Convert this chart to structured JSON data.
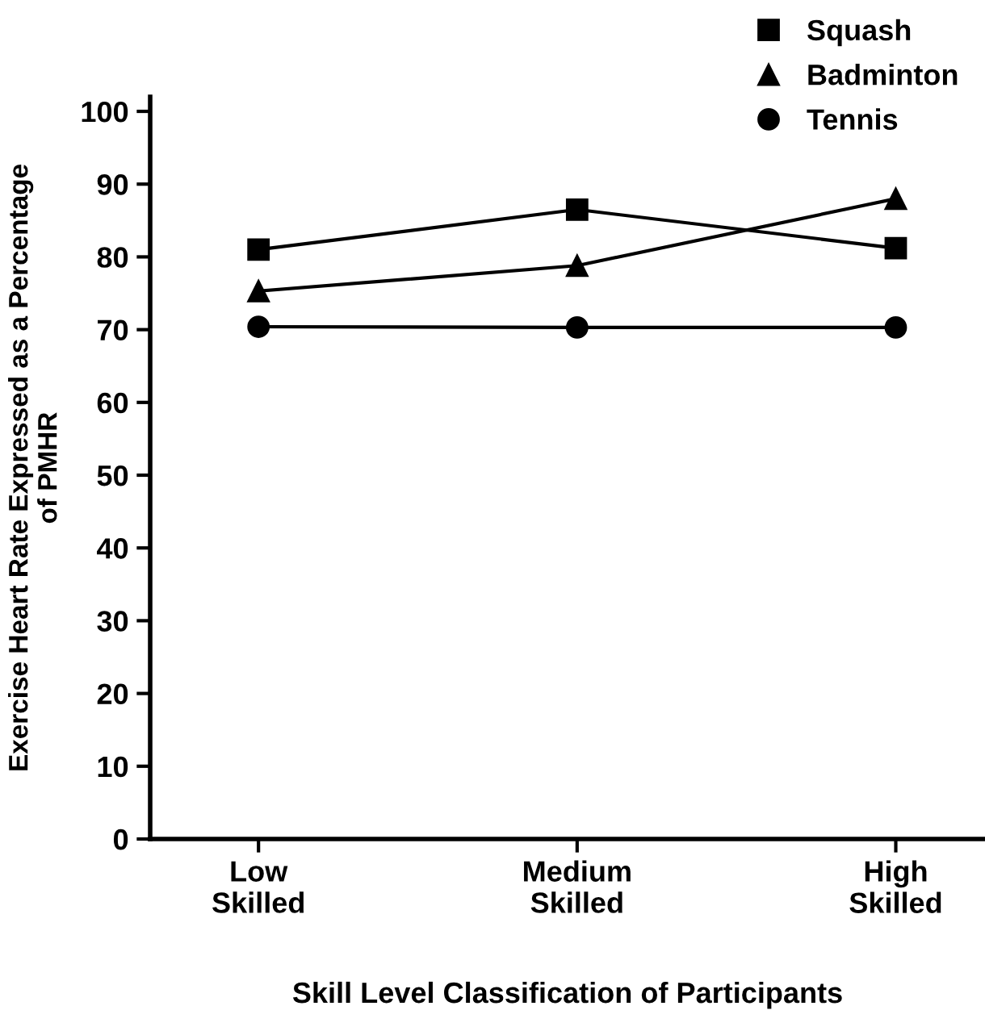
{
  "chart_data": {
    "type": "line",
    "xlabel": "Skill Level Classification of Participants",
    "ylabel": "Exercise Heart Rate Expressed as a Percentage\nof PMHR",
    "categories": [
      "Low\nSkilled",
      "Medium\nSkilled",
      "High\nSkilled"
    ],
    "series": [
      {
        "name": "Squash",
        "color": "#000000",
        "marker": "square",
        "values": [
          81.0,
          86.5,
          81.2
        ]
      },
      {
        "name": "Badminton",
        "color": "#000000",
        "marker": "triangle",
        "values": [
          75.3,
          78.8,
          88.0
        ]
      },
      {
        "name": "Tennis",
        "color": "#000000",
        "marker": "circle",
        "values": [
          70.4,
          70.3,
          70.3
        ]
      }
    ],
    "ylim": [
      0,
      102
    ],
    "yticks": [
      0,
      10,
      20,
      30,
      40,
      50,
      60,
      70,
      80,
      90,
      100
    ],
    "grid": false,
    "legend": "top right",
    "line_style": "solid"
  }
}
